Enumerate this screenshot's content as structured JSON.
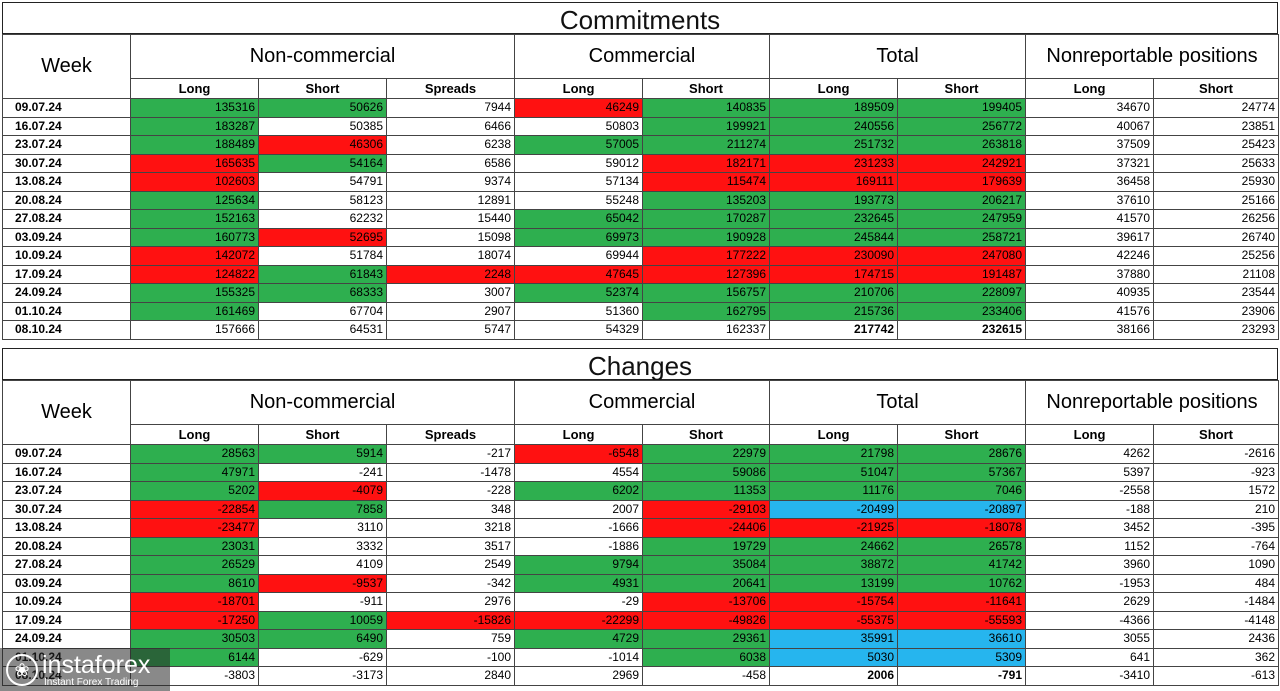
{
  "commitments": {
    "title": "Commitments",
    "week_header": "Week",
    "groups": [
      "Non-commercial",
      "Commercial",
      "Total",
      "Nonreportable positions"
    ],
    "subheaders": [
      "Long",
      "Short",
      "Spreads",
      "Long",
      "Short",
      "Long",
      "Short",
      "Long",
      "Short"
    ],
    "rows": [
      {
        "week": "09.07.24",
        "cells": [
          "135316",
          "50626",
          "7944",
          "46249",
          "140835",
          "189509",
          "199405",
          "34670",
          "24774"
        ],
        "colors": [
          "g",
          "g",
          "w",
          "r",
          "g",
          "g",
          "g",
          "w",
          "w"
        ]
      },
      {
        "week": "16.07.24",
        "cells": [
          "183287",
          "50385",
          "6466",
          "50803",
          "199921",
          "240556",
          "256772",
          "40067",
          "23851"
        ],
        "colors": [
          "g",
          "w",
          "w",
          "w",
          "g",
          "g",
          "g",
          "w",
          "w"
        ]
      },
      {
        "week": "23.07.24",
        "cells": [
          "188489",
          "46306",
          "6238",
          "57005",
          "211274",
          "251732",
          "263818",
          "37509",
          "25423"
        ],
        "colors": [
          "g",
          "r",
          "w",
          "g",
          "g",
          "g",
          "g",
          "w",
          "w"
        ]
      },
      {
        "week": "30.07.24",
        "cells": [
          "165635",
          "54164",
          "6586",
          "59012",
          "182171",
          "231233",
          "242921",
          "37321",
          "25633"
        ],
        "colors": [
          "r",
          "g",
          "w",
          "w",
          "r",
          "r",
          "r",
          "w",
          "w"
        ]
      },
      {
        "week": "13.08.24",
        "cells": [
          "102603",
          "54791",
          "9374",
          "57134",
          "115474",
          "169111",
          "179639",
          "36458",
          "25930"
        ],
        "colors": [
          "r",
          "w",
          "w",
          "w",
          "r",
          "r",
          "r",
          "w",
          "w"
        ]
      },
      {
        "week": "20.08.24",
        "cells": [
          "125634",
          "58123",
          "12891",
          "55248",
          "135203",
          "193773",
          "206217",
          "37610",
          "25166"
        ],
        "colors": [
          "g",
          "w",
          "w",
          "w",
          "g",
          "g",
          "g",
          "w",
          "w"
        ]
      },
      {
        "week": "27.08.24",
        "cells": [
          "152163",
          "62232",
          "15440",
          "65042",
          "170287",
          "232645",
          "247959",
          "41570",
          "26256"
        ],
        "colors": [
          "g",
          "w",
          "w",
          "g",
          "g",
          "g",
          "g",
          "w",
          "w"
        ]
      },
      {
        "week": "03.09.24",
        "cells": [
          "160773",
          "52695",
          "15098",
          "69973",
          "190928",
          "245844",
          "258721",
          "39617",
          "26740"
        ],
        "colors": [
          "g",
          "r",
          "w",
          "g",
          "g",
          "g",
          "g",
          "w",
          "w"
        ]
      },
      {
        "week": "10.09.24",
        "cells": [
          "142072",
          "51784",
          "18074",
          "69944",
          "177222",
          "230090",
          "247080",
          "42246",
          "25256"
        ],
        "colors": [
          "r",
          "w",
          "w",
          "w",
          "r",
          "r",
          "r",
          "w",
          "w"
        ]
      },
      {
        "week": "17.09.24",
        "cells": [
          "124822",
          "61843",
          "2248",
          "47645",
          "127396",
          "174715",
          "191487",
          "37880",
          "21108"
        ],
        "colors": [
          "r",
          "g",
          "r",
          "r",
          "r",
          "r",
          "r",
          "w",
          "w"
        ]
      },
      {
        "week": "24.09.24",
        "cells": [
          "155325",
          "68333",
          "3007",
          "52374",
          "156757",
          "210706",
          "228097",
          "40935",
          "23544"
        ],
        "colors": [
          "g",
          "g",
          "w",
          "g",
          "g",
          "g",
          "g",
          "w",
          "w"
        ]
      },
      {
        "week": "01.10.24",
        "cells": [
          "161469",
          "67704",
          "2907",
          "51360",
          "162795",
          "215736",
          "233406",
          "41576",
          "23906"
        ],
        "colors": [
          "g",
          "w",
          "w",
          "w",
          "g",
          "g",
          "g",
          "w",
          "w"
        ]
      },
      {
        "week": "08.10.24",
        "cells": [
          "157666",
          "64531",
          "5747",
          "54329",
          "162337",
          "217742",
          "232615",
          "38166",
          "23293"
        ],
        "colors": [
          "w",
          "w",
          "w",
          "w",
          "w",
          "w",
          "w",
          "w",
          "w"
        ],
        "bold_cells": [
          5,
          6
        ]
      }
    ]
  },
  "changes": {
    "title": "Changes",
    "week_header": "Week",
    "groups": [
      "Non-commercial",
      "Commercial",
      "Total",
      "Nonreportable positions"
    ],
    "subheaders": [
      "Long",
      "Short",
      "Spreads",
      "Long",
      "Short",
      "Long",
      "Short",
      "Long",
      "Short"
    ],
    "rows": [
      {
        "week": "09.07.24",
        "cells": [
          "28563",
          "5914",
          "-217",
          "-6548",
          "22979",
          "21798",
          "28676",
          "4262",
          "-2616"
        ],
        "colors": [
          "g",
          "g",
          "w",
          "r",
          "g",
          "g",
          "g",
          "w",
          "w"
        ]
      },
      {
        "week": "16.07.24",
        "cells": [
          "47971",
          "-241",
          "-1478",
          "4554",
          "59086",
          "51047",
          "57367",
          "5397",
          "-923"
        ],
        "colors": [
          "g",
          "w",
          "w",
          "w",
          "g",
          "g",
          "g",
          "w",
          "w"
        ]
      },
      {
        "week": "23.07.24",
        "cells": [
          "5202",
          "-4079",
          "-228",
          "6202",
          "11353",
          "11176",
          "7046",
          "-2558",
          "1572"
        ],
        "colors": [
          "g",
          "r",
          "w",
          "g",
          "g",
          "g",
          "g",
          "w",
          "w"
        ]
      },
      {
        "week": "30.07.24",
        "cells": [
          "-22854",
          "7858",
          "348",
          "2007",
          "-29103",
          "-20499",
          "-20897",
          "-188",
          "210"
        ],
        "colors": [
          "r",
          "g",
          "w",
          "w",
          "r",
          "b",
          "b",
          "w",
          "w"
        ]
      },
      {
        "week": "13.08.24",
        "cells": [
          "-23477",
          "3110",
          "3218",
          "-1666",
          "-24406",
          "-21925",
          "-18078",
          "3452",
          "-395"
        ],
        "colors": [
          "r",
          "w",
          "w",
          "w",
          "r",
          "r",
          "r",
          "w",
          "w"
        ]
      },
      {
        "week": "20.08.24",
        "cells": [
          "23031",
          "3332",
          "3517",
          "-1886",
          "19729",
          "24662",
          "26578",
          "1152",
          "-764"
        ],
        "colors": [
          "g",
          "w",
          "w",
          "w",
          "g",
          "g",
          "g",
          "w",
          "w"
        ]
      },
      {
        "week": "27.08.24",
        "cells": [
          "26529",
          "4109",
          "2549",
          "9794",
          "35084",
          "38872",
          "41742",
          "3960",
          "1090"
        ],
        "colors": [
          "g",
          "w",
          "w",
          "g",
          "g",
          "g",
          "g",
          "w",
          "w"
        ]
      },
      {
        "week": "03.09.24",
        "cells": [
          "8610",
          "-9537",
          "-342",
          "4931",
          "20641",
          "13199",
          "10762",
          "-1953",
          "484"
        ],
        "colors": [
          "g",
          "r",
          "w",
          "g",
          "g",
          "g",
          "g",
          "w",
          "w"
        ]
      },
      {
        "week": "10.09.24",
        "cells": [
          "-18701",
          "-911",
          "2976",
          "-29",
          "-13706",
          "-15754",
          "-11641",
          "2629",
          "-1484"
        ],
        "colors": [
          "r",
          "w",
          "w",
          "w",
          "r",
          "r",
          "r",
          "w",
          "w"
        ]
      },
      {
        "week": "17.09.24",
        "cells": [
          "-17250",
          "10059",
          "-15826",
          "-22299",
          "-49826",
          "-55375",
          "-55593",
          "-4366",
          "-4148"
        ],
        "colors": [
          "r",
          "g",
          "r",
          "r",
          "r",
          "r",
          "r",
          "w",
          "w"
        ]
      },
      {
        "week": "24.09.24",
        "cells": [
          "30503",
          "6490",
          "759",
          "4729",
          "29361",
          "35991",
          "36610",
          "3055",
          "2436"
        ],
        "colors": [
          "g",
          "g",
          "w",
          "g",
          "g",
          "b",
          "b",
          "w",
          "w"
        ]
      },
      {
        "week": "01.10.24",
        "cells": [
          "6144",
          "-629",
          "-100",
          "-1014",
          "6038",
          "5030",
          "5309",
          "641",
          "362"
        ],
        "colors": [
          "g",
          "w",
          "w",
          "w",
          "g",
          "b",
          "b",
          "w",
          "w"
        ]
      },
      {
        "week": "08.10.24",
        "cells": [
          "-3803",
          "-3173",
          "2840",
          "2969",
          "-458",
          "2006",
          "-791",
          "-3410",
          "-613"
        ],
        "colors": [
          "w",
          "w",
          "w",
          "w",
          "w",
          "w",
          "w",
          "w",
          "w"
        ],
        "bold_cells": [
          5,
          6
        ]
      }
    ]
  },
  "watermark": {
    "brand": "instaforex",
    "tagline": "Instant Forex Trading",
    "icon": "instaforex-logo-icon"
  },
  "colors": {
    "green": "#2eaf4f",
    "red": "#ff1111",
    "blue": "#26b5ee"
  }
}
